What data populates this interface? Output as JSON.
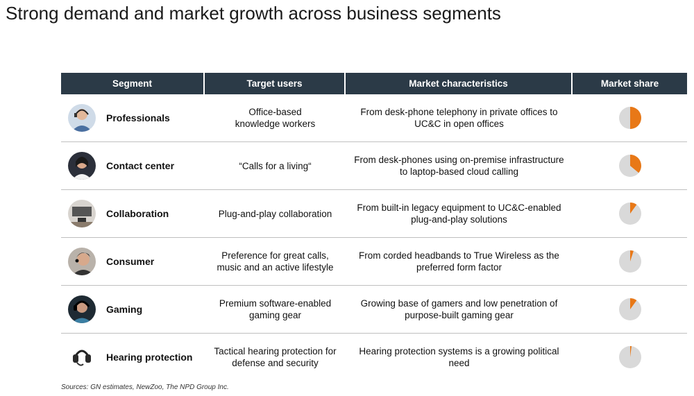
{
  "title": "Strong demand and market growth across business segments",
  "columns": [
    "Segment",
    "Target users",
    "Market characteristics",
    "Market share"
  ],
  "colors": {
    "header_bg": "#2b3a47",
    "pie_fill": "#e87817",
    "pie_bg": "#d9d9d9"
  },
  "rows": [
    {
      "segment": "Professionals",
      "target_line1": "Office-based",
      "target_line2": "knowledge workers",
      "market_line1": "From desk-phone telephony in private offices to",
      "market_line2": "UC&C in open offices",
      "market_share_fraction": 0.5,
      "icon": "professional-headset-avatar"
    },
    {
      "segment": "Contact center",
      "target_line1": "“Calls for a living“",
      "target_line2": "",
      "market_line1": "From desk-phones using on-premise infrastructure",
      "market_line2": "to laptop-based cloud calling",
      "market_share_fraction": 0.36,
      "icon": "contact-center-agent-avatar"
    },
    {
      "segment": "Collaboration",
      "target_line1": "Plug-and-play collaboration",
      "target_line2": "",
      "market_line1": "From built-in legacy equipment to UC&C-enabled",
      "market_line2": "plug-and-play solutions",
      "market_share_fraction": 0.1,
      "icon": "meeting-room-camera-avatar"
    },
    {
      "segment": "Consumer",
      "target_line1": "Preference for great calls,",
      "target_line2": "music and an active lifestyle",
      "market_line1": "From corded headbands to True Wireless as the",
      "market_line2": "preferred form factor",
      "market_share_fraction": 0.05,
      "icon": "consumer-earbud-avatar"
    },
    {
      "segment": "Gaming",
      "target_line1": "Premium software-enabled",
      "target_line2": "gaming gear",
      "market_line1": "Growing base of gamers and low penetration of",
      "market_line2": "purpose-built gaming gear",
      "market_share_fraction": 0.1,
      "icon": "gamer-headset-avatar"
    },
    {
      "segment": "Hearing protection",
      "target_line1": "Tactical hearing protection for",
      "target_line2": "defense and security",
      "market_line1": "Hearing protection systems is a growing political",
      "market_line2": "need",
      "market_share_fraction": 0.02,
      "icon": "tactical-headset-avatar"
    }
  ],
  "source": "Sources: GN estimates, NewZoo, The NPD Group Inc."
}
